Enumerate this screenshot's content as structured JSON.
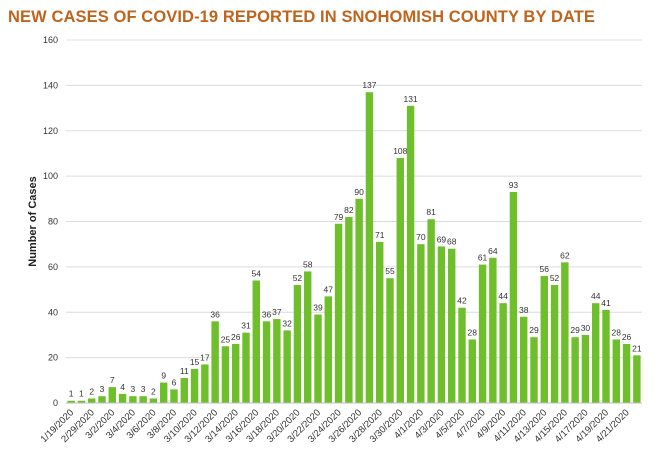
{
  "title": "NEW CASES OF COVID-19 REPORTED IN SNOHOMISH COUNTY BY DATE",
  "colors": {
    "title": "#c0641c",
    "bar": "#6fbe2c",
    "grid": "#dcdcdc"
  },
  "chart_data": {
    "type": "bar",
    "title": "NEW CASES OF COVID-19 REPORTED IN SNOHOMISH COUNTY BY DATE",
    "xlabel": "",
    "ylabel": "Number of Cases",
    "ylim": [
      0,
      160
    ],
    "yticks": [
      0,
      20,
      40,
      60,
      80,
      100,
      120,
      140,
      160
    ],
    "grid": true,
    "categories": [
      "1/19/2020",
      "1/20/2020",
      "2/29/2020",
      "3/1/2020",
      "3/2/2020",
      "3/3/2020",
      "3/4/2020",
      "3/5/2020",
      "3/6/2020",
      "3/7/2020",
      "3/8/2020",
      "3/9/2020",
      "3/10/2020",
      "3/11/2020",
      "3/12/2020",
      "3/13/2020",
      "3/14/2020",
      "3/15/2020",
      "3/16/2020",
      "3/17/2020",
      "3/18/2020",
      "3/19/2020",
      "3/20/2020",
      "3/21/2020",
      "3/22/2020",
      "3/23/2020",
      "3/24/2020",
      "3/25/2020",
      "3/26/2020",
      "3/27/2020",
      "3/28/2020",
      "3/29/2020",
      "3/30/2020",
      "3/31/2020",
      "4/1/2020",
      "4/2/2020",
      "4/3/2020",
      "4/4/2020",
      "4/5/2020",
      "4/6/2020",
      "4/7/2020",
      "4/8/2020",
      "4/9/2020",
      "4/10/2020",
      "4/11/2020",
      "4/12/2020",
      "4/13/2020",
      "4/14/2020",
      "4/15/2020",
      "4/16/2020",
      "4/17/2020",
      "4/18/2020",
      "4/19/2020",
      "4/20/2020",
      "4/21/2020",
      "4/22/2020"
    ],
    "shown_x_labels": [
      "1/19/2020",
      "2/29/2020",
      "3/2/2020",
      "3/4/2020",
      "3/6/2020",
      "3/8/2020",
      "3/10/2020",
      "3/12/2020",
      "3/14/2020",
      "3/16/2020",
      "3/18/2020",
      "3/20/2020",
      "3/22/2020",
      "3/24/2020",
      "3/26/2020",
      "3/28/2020",
      "3/30/2020",
      "4/1/2020",
      "4/3/2020",
      "4/5/2020",
      "4/7/2020",
      "4/9/2020",
      "4/11/2020",
      "4/13/2020",
      "4/15/2020",
      "4/17/2020",
      "4/19/2020",
      "4/21/2020"
    ],
    "values": [
      1,
      1,
      2,
      3,
      7,
      4,
      3,
      3,
      2,
      9,
      6,
      11,
      15,
      17,
      36,
      25,
      26,
      31,
      54,
      36,
      37,
      32,
      52,
      58,
      39,
      47,
      79,
      82,
      90,
      137,
      71,
      55,
      108,
      131,
      70,
      81,
      69,
      68,
      42,
      28,
      61,
      64,
      44,
      93,
      38,
      29,
      56,
      52,
      62,
      29,
      30,
      44,
      41,
      28,
      26,
      21
    ]
  }
}
